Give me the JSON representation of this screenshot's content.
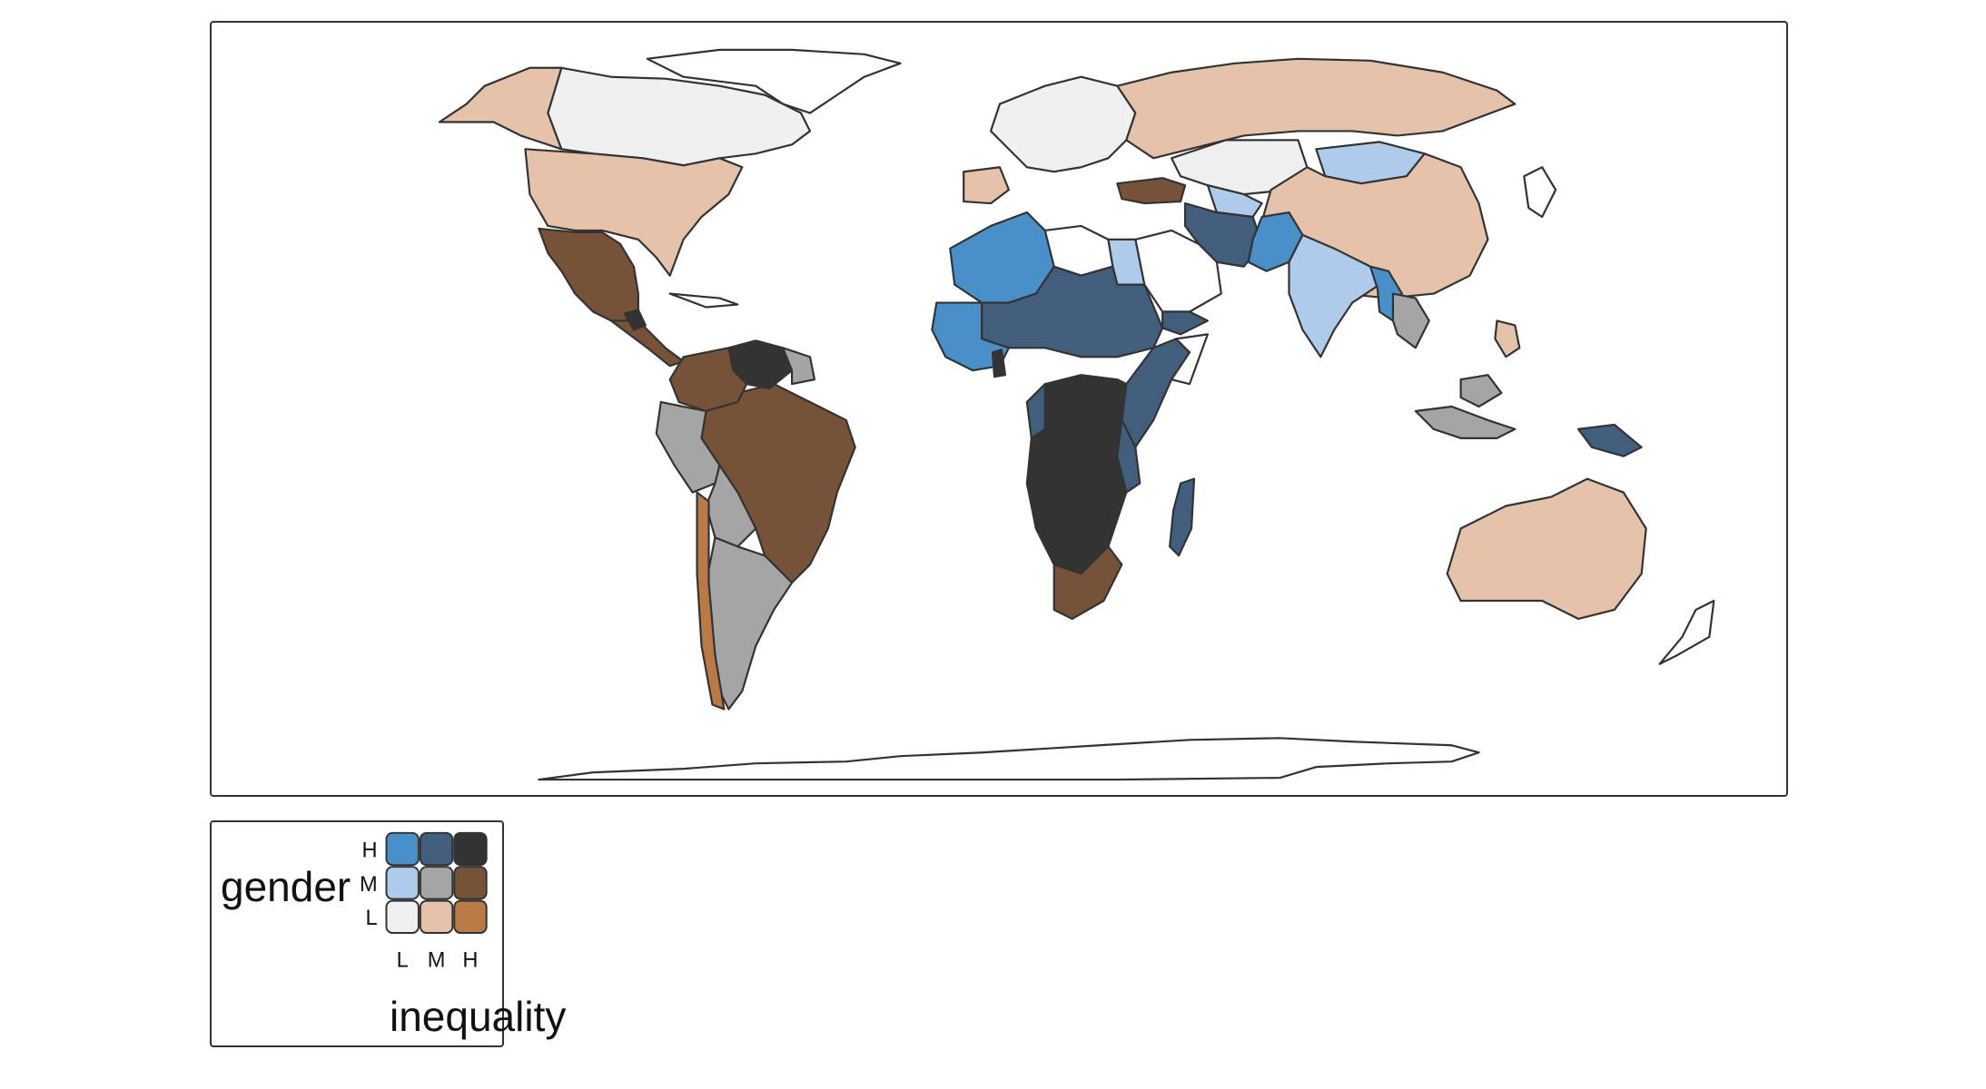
{
  "legend": {
    "y_title": "gender",
    "x_title": "inequality",
    "y_ticks": [
      "H",
      "M",
      "L"
    ],
    "x_ticks": [
      "L",
      "M",
      "H"
    ],
    "grid": [
      [
        "#4a90c8",
        "#415e7c",
        "#333333"
      ],
      [
        "#aecbeb",
        "#a5a5a5",
        "#765238"
      ],
      [
        "#f0f0f0",
        "#e5c3ab",
        "#b97a46"
      ]
    ]
  },
  "colors": {
    "no_data": "#ffffff",
    "border": "#333333"
  }
}
